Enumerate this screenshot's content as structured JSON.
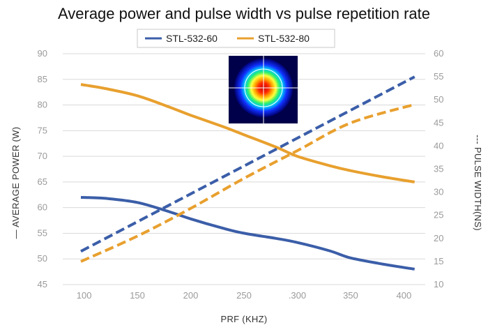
{
  "chart_data": {
    "type": "line",
    "title": "Average power and pulse width vs pulse repetition rate",
    "xlabel": "PRF (KHZ)",
    "ylabel_left": "— AVERAGE POWER (W)",
    "ylabel_right": "--- PULSE WIDTH(NS)",
    "x_ticks": [
      "100",
      "150",
      "200",
      "250",
      ".300",
      "350",
      "400"
    ],
    "y_left_ticks": [
      "45",
      "50",
      "55",
      "60",
      "65",
      "70",
      "75",
      "80",
      "85",
      "90"
    ],
    "y_right_ticks": [
      "10",
      "15",
      "20",
      "25",
      "30",
      "35",
      "40",
      "45",
      "50",
      "55",
      "60"
    ],
    "xlim": [
      80,
      420
    ],
    "ylim_left": [
      45,
      90
    ],
    "ylim_right": [
      10,
      60
    ],
    "grid": true,
    "legend_position": "top-center",
    "legend": [
      {
        "name": "STL-532-60",
        "color": "#3b5ea8"
      },
      {
        "name": "STL-532-80",
        "color": "#e8a02e"
      }
    ],
    "series": [
      {
        "name": "STL-532-60",
        "metric": "average power",
        "axis": "left",
        "style": "solid",
        "color": "#3b5ea8",
        "points": [
          [
            97,
            62.0
          ],
          [
            120,
            61.8
          ],
          [
            150,
            61.0
          ],
          [
            180,
            59.2
          ],
          [
            200,
            57.8
          ],
          [
            230,
            56.0
          ],
          [
            250,
            55.0
          ],
          [
            280,
            54.0
          ],
          [
            300,
            53.2
          ],
          [
            330,
            51.6
          ],
          [
            350,
            50.2
          ],
          [
            380,
            49.0
          ],
          [
            410,
            48.0
          ]
        ]
      },
      {
        "name": "STL-532-80",
        "metric": "average power",
        "axis": "left",
        "style": "solid",
        "color": "#e8a02e",
        "points": [
          [
            97,
            84.0
          ],
          [
            120,
            83.2
          ],
          [
            150,
            81.8
          ],
          [
            180,
            79.6
          ],
          [
            200,
            78.0
          ],
          [
            230,
            75.8
          ],
          [
            250,
            74.2
          ],
          [
            280,
            71.8
          ],
          [
            300,
            70.0
          ],
          [
            330,
            68.2
          ],
          [
            350,
            67.2
          ],
          [
            380,
            66.0
          ],
          [
            410,
            65.0
          ]
        ]
      },
      {
        "name": "STL-532-60",
        "metric": "pulse width",
        "axis": "right",
        "style": "dashed",
        "color": "#3b5ea8",
        "points": [
          [
            97,
            17.2
          ],
          [
            410,
            55.0
          ]
        ]
      },
      {
        "name": "STL-532-80",
        "metric": "pulse width",
        "axis": "right",
        "style": "dashed",
        "color": "#e8a02e",
        "points": [
          [
            97,
            15.0
          ],
          [
            150,
            20.5
          ],
          [
            200,
            26.5
          ],
          [
            250,
            33.0
          ],
          [
            300,
            39.0
          ],
          [
            350,
            45.0
          ],
          [
            410,
            49.0
          ]
        ]
      }
    ],
    "inset_image": "beam-profile-icon"
  }
}
